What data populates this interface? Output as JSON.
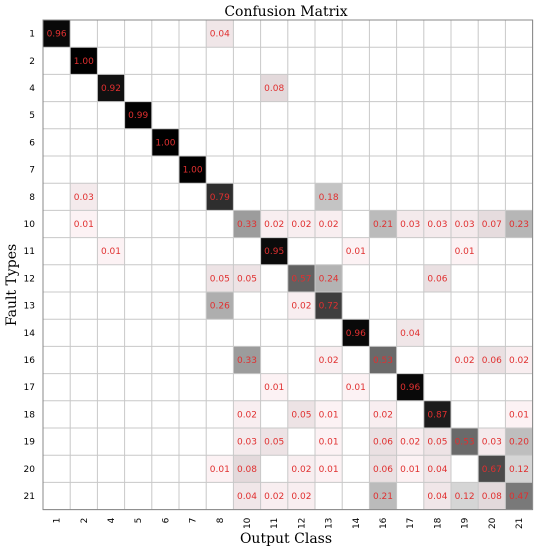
{
  "chart_data": {
    "type": "heatmap",
    "title": "Confusion Matrix",
    "xlabel": "Output Class",
    "ylabel": "Fault Types",
    "x_categories": [
      "1",
      "2",
      "4",
      "5",
      "6",
      "7",
      "8",
      "10",
      "11",
      "12",
      "13",
      "14",
      "16",
      "17",
      "18",
      "19",
      "20",
      "21"
    ],
    "y_categories": [
      "1",
      "2",
      "4",
      "5",
      "6",
      "7",
      "8",
      "10",
      "11",
      "12",
      "13",
      "14",
      "16",
      "17",
      "18",
      "19",
      "20",
      "21"
    ],
    "value_range": [
      0,
      1
    ],
    "colormap": "white-to-black",
    "grid": true,
    "label_color": "#e03030",
    "cells": [
      {
        "row": "1",
        "col": "1",
        "value": 0.96,
        "label": "0.96"
      },
      {
        "row": "1",
        "col": "8",
        "value": 0.04,
        "label": "0.04"
      },
      {
        "row": "2",
        "col": "2",
        "value": 1.0,
        "label": "1.00"
      },
      {
        "row": "4",
        "col": "4",
        "value": 0.92,
        "label": "0.92"
      },
      {
        "row": "4",
        "col": "11",
        "value": 0.08,
        "label": "0.08"
      },
      {
        "row": "5",
        "col": "5",
        "value": 0.99,
        "label": "0.99"
      },
      {
        "row": "6",
        "col": "6",
        "value": 1.0,
        "label": "1.00"
      },
      {
        "row": "7",
        "col": "7",
        "value": 1.0,
        "label": "1.00"
      },
      {
        "row": "8",
        "col": "2",
        "value": 0.03,
        "label": "0.03"
      },
      {
        "row": "8",
        "col": "8",
        "value": 0.79,
        "label": "0.79"
      },
      {
        "row": "8",
        "col": "13",
        "value": 0.18,
        "label": "0.18"
      },
      {
        "row": "10",
        "col": "2",
        "value": 0.01,
        "label": "0.01"
      },
      {
        "row": "10",
        "col": "10",
        "value": 0.33,
        "label": "0.33"
      },
      {
        "row": "10",
        "col": "11",
        "value": 0.02,
        "label": "0.02"
      },
      {
        "row": "10",
        "col": "12",
        "value": 0.02,
        "label": "0.02"
      },
      {
        "row": "10",
        "col": "13",
        "value": 0.02,
        "label": "0.02"
      },
      {
        "row": "10",
        "col": "16",
        "value": 0.21,
        "label": "0.21"
      },
      {
        "row": "10",
        "col": "17",
        "value": 0.03,
        "label": "0.03"
      },
      {
        "row": "10",
        "col": "18",
        "value": 0.03,
        "label": "0.03"
      },
      {
        "row": "10",
        "col": "19",
        "value": 0.03,
        "label": "0.03"
      },
      {
        "row": "10",
        "col": "20",
        "value": 0.07,
        "label": "0.07"
      },
      {
        "row": "10",
        "col": "21",
        "value": 0.23,
        "label": "0.23"
      },
      {
        "row": "11",
        "col": "4",
        "value": 0.01,
        "label": "0.01"
      },
      {
        "row": "11",
        "col": "11",
        "value": 0.95,
        "label": "0.95"
      },
      {
        "row": "11",
        "col": "14",
        "value": 0.01,
        "label": "0.01"
      },
      {
        "row": "11",
        "col": "19",
        "value": 0.01,
        "label": "0.01"
      },
      {
        "row": "12",
        "col": "8",
        "value": 0.05,
        "label": "0.05"
      },
      {
        "row": "12",
        "col": "10",
        "value": 0.05,
        "label": "0.05"
      },
      {
        "row": "12",
        "col": "12",
        "value": 0.57,
        "label": "0.57"
      },
      {
        "row": "12",
        "col": "13",
        "value": 0.24,
        "label": "0.24"
      },
      {
        "row": "12",
        "col": "18",
        "value": 0.06,
        "label": "0.06"
      },
      {
        "row": "13",
        "col": "8",
        "value": 0.26,
        "label": "0.26"
      },
      {
        "row": "13",
        "col": "12",
        "value": 0.02,
        "label": "0.02"
      },
      {
        "row": "13",
        "col": "13",
        "value": 0.72,
        "label": "0.72"
      },
      {
        "row": "14",
        "col": "14",
        "value": 0.96,
        "label": "0.96"
      },
      {
        "row": "14",
        "col": "17",
        "value": 0.04,
        "label": "0.04"
      },
      {
        "row": "16",
        "col": "10",
        "value": 0.33,
        "label": "0.33"
      },
      {
        "row": "16",
        "col": "13",
        "value": 0.02,
        "label": "0.02"
      },
      {
        "row": "16",
        "col": "16",
        "value": 0.53,
        "label": "0.53"
      },
      {
        "row": "16",
        "col": "19",
        "value": 0.02,
        "label": "0.02"
      },
      {
        "row": "16",
        "col": "20",
        "value": 0.06,
        "label": "0.06"
      },
      {
        "row": "16",
        "col": "21",
        "value": 0.02,
        "label": "0.02"
      },
      {
        "row": "17",
        "col": "11",
        "value": 0.01,
        "label": "0.01"
      },
      {
        "row": "17",
        "col": "14",
        "value": 0.01,
        "label": "0.01"
      },
      {
        "row": "17",
        "col": "17",
        "value": 0.96,
        "label": "0.96"
      },
      {
        "row": "18",
        "col": "10",
        "value": 0.02,
        "label": "0.02"
      },
      {
        "row": "18",
        "col": "12",
        "value": 0.05,
        "label": "0.05"
      },
      {
        "row": "18",
        "col": "13",
        "value": 0.01,
        "label": "0.01"
      },
      {
        "row": "18",
        "col": "16",
        "value": 0.02,
        "label": "0.02"
      },
      {
        "row": "18",
        "col": "18",
        "value": 0.87,
        "label": "0.87"
      },
      {
        "row": "18",
        "col": "21",
        "value": 0.01,
        "label": "0.01"
      },
      {
        "row": "19",
        "col": "10",
        "value": 0.03,
        "label": "0.03"
      },
      {
        "row": "19",
        "col": "11",
        "value": 0.05,
        "label": "0.05"
      },
      {
        "row": "19",
        "col": "13",
        "value": 0.01,
        "label": "0.01"
      },
      {
        "row": "19",
        "col": "16",
        "value": 0.06,
        "label": "0.06"
      },
      {
        "row": "19",
        "col": "17",
        "value": 0.02,
        "label": "0.02"
      },
      {
        "row": "19",
        "col": "18",
        "value": 0.05,
        "label": "0.05"
      },
      {
        "row": "19",
        "col": "19",
        "value": 0.53,
        "label": "0.53"
      },
      {
        "row": "19",
        "col": "20",
        "value": 0.03,
        "label": "0.03"
      },
      {
        "row": "19",
        "col": "21",
        "value": 0.2,
        "label": "0.20"
      },
      {
        "row": "20",
        "col": "8",
        "value": 0.01,
        "label": "0.01"
      },
      {
        "row": "20",
        "col": "10",
        "value": 0.08,
        "label": "0.08"
      },
      {
        "row": "20",
        "col": "12",
        "value": 0.02,
        "label": "0.02"
      },
      {
        "row": "20",
        "col": "13",
        "value": 0.01,
        "label": "0.01"
      },
      {
        "row": "20",
        "col": "16",
        "value": 0.06,
        "label": "0.06"
      },
      {
        "row": "20",
        "col": "17",
        "value": 0.01,
        "label": "0.01"
      },
      {
        "row": "20",
        "col": "18",
        "value": 0.04,
        "label": "0.04"
      },
      {
        "row": "20",
        "col": "20",
        "value": 0.67,
        "label": "0.67"
      },
      {
        "row": "20",
        "col": "21",
        "value": 0.12,
        "label": "0.12"
      },
      {
        "row": "21",
        "col": "10",
        "value": 0.04,
        "label": "0.04"
      },
      {
        "row": "21",
        "col": "11",
        "value": 0.02,
        "label": "0.02"
      },
      {
        "row": "21",
        "col": "12",
        "value": 0.02,
        "label": "0.02"
      },
      {
        "row": "21",
        "col": "16",
        "value": 0.21,
        "label": "0.21"
      },
      {
        "row": "21",
        "col": "18",
        "value": 0.04,
        "label": "0.04"
      },
      {
        "row": "21",
        "col": "19",
        "value": 0.12,
        "label": "0.12"
      },
      {
        "row": "21",
        "col": "20",
        "value": 0.08,
        "label": "0.08"
      },
      {
        "row": "21",
        "col": "21",
        "value": 0.47,
        "label": "0.47"
      }
    ]
  }
}
